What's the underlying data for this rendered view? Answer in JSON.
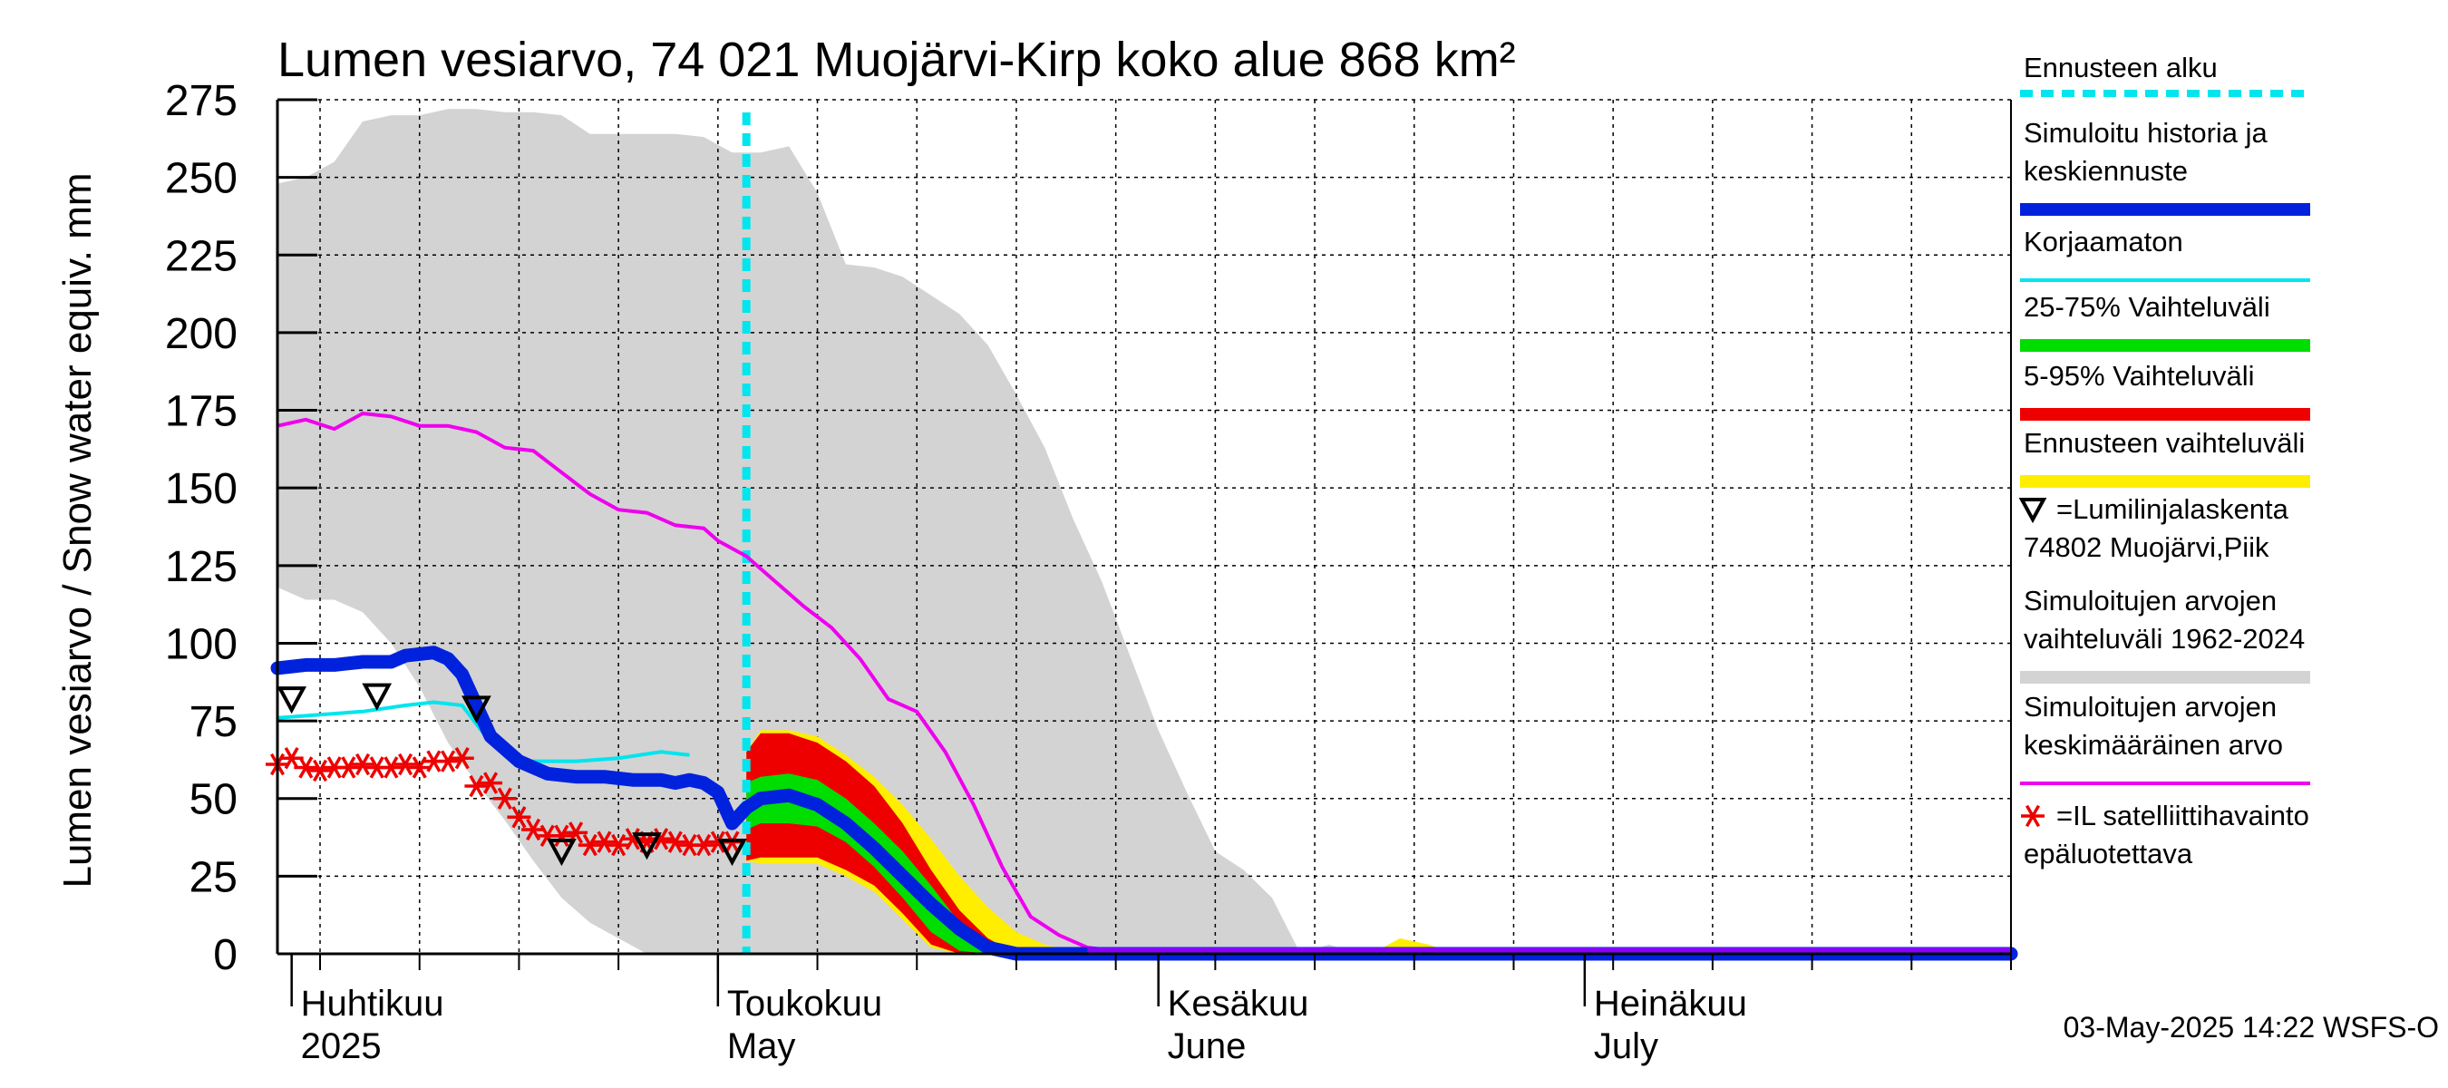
{
  "chart_data": {
    "type": "line",
    "title": "Lumen vesiarvo, 74 021 Muojärvi-Kirp koko alue 868 km²",
    "ylabel": "Lumen vesiarvo / Snow water equiv.    mm",
    "ylim": [
      0,
      275
    ],
    "yticks": [
      0,
      25,
      50,
      75,
      100,
      125,
      150,
      175,
      200,
      225,
      250,
      275
    ],
    "xlim": [
      "2025-03-31",
      "2025-07-31"
    ],
    "month_labels": [
      {
        "date": "2025-04-01",
        "fi": "Huhtikuu",
        "en": "2025"
      },
      {
        "date": "2025-05-01",
        "fi": "Toukokuu",
        "en": "May"
      },
      {
        "date": "2025-06-01",
        "fi": "Kesäkuu",
        "en": "June"
      },
      {
        "date": "2025-07-01",
        "fi": "Heinäkuu",
        "en": "July"
      }
    ],
    "grid": true,
    "footer": "03-May-2025 14:22 WSFS-O",
    "forecast_start": "2025-05-03",
    "colors": {
      "forecast_start": "#00e5ee",
      "simulated": "#0022dd",
      "uncorrected": "#00e5ee",
      "p25_75": "#00dd00",
      "p5_95": "#ee0000",
      "forecast_range": "#ffee00",
      "historical_range": "#d3d3d3",
      "historical_mean": "#ee00ee",
      "snow_course": "#000000",
      "satellite": "#ee0000"
    },
    "historical_range": {
      "dates": [
        "2025-03-31",
        "2025-04-02",
        "2025-04-04",
        "2025-04-06",
        "2025-04-08",
        "2025-04-10",
        "2025-04-12",
        "2025-04-14",
        "2025-04-16",
        "2025-04-18",
        "2025-04-20",
        "2025-04-22",
        "2025-04-24",
        "2025-04-26",
        "2025-04-28",
        "2025-04-30",
        "2025-05-02",
        "2025-05-04",
        "2025-05-06",
        "2025-05-08",
        "2025-05-10",
        "2025-05-12",
        "2025-05-14",
        "2025-05-16",
        "2025-05-18",
        "2025-05-20",
        "2025-05-22",
        "2025-05-24",
        "2025-05-26",
        "2025-05-28",
        "2025-05-30",
        "2025-06-01",
        "2025-06-03",
        "2025-06-05",
        "2025-06-07",
        "2025-06-09",
        "2025-06-11",
        "2025-06-13",
        "2025-06-15",
        "2025-06-18",
        "2025-06-21",
        "2025-06-24",
        "2025-06-27",
        "2025-06-30",
        "2025-07-31"
      ],
      "upper": [
        248,
        250,
        255,
        268,
        270,
        270,
        272,
        272,
        271,
        271,
        270,
        264,
        264,
        264,
        264,
        263,
        258,
        258,
        260,
        245,
        222,
        221,
        218,
        212,
        206,
        196,
        180,
        163,
        140,
        120,
        96,
        72,
        52,
        33,
        27,
        18,
        0,
        3,
        0,
        0,
        0,
        0,
        0,
        0,
        0
      ],
      "lower": [
        118,
        114,
        114,
        110,
        100,
        86,
        68,
        55,
        43,
        30,
        18,
        10,
        5,
        0,
        0,
        0,
        0,
        0,
        0,
        0,
        0,
        0,
        0,
        0,
        0,
        0,
        0,
        0,
        0,
        0,
        0,
        0,
        0,
        0,
        0,
        0,
        0,
        0,
        0,
        0,
        0,
        0,
        0,
        0,
        0
      ]
    },
    "series": [
      {
        "name": "Simuloitujen arvojen keskimääräinen arvo",
        "dates": [
          "2025-03-31",
          "2025-04-02",
          "2025-04-04",
          "2025-04-06",
          "2025-04-08",
          "2025-04-10",
          "2025-04-12",
          "2025-04-14",
          "2025-04-16",
          "2025-04-18",
          "2025-04-20",
          "2025-04-22",
          "2025-04-24",
          "2025-04-26",
          "2025-04-28",
          "2025-04-30",
          "2025-05-01",
          "2025-05-03",
          "2025-05-05",
          "2025-05-07",
          "2025-05-09",
          "2025-05-11",
          "2025-05-13",
          "2025-05-15",
          "2025-05-17",
          "2025-05-19",
          "2025-05-21",
          "2025-05-23",
          "2025-05-25",
          "2025-05-27",
          "2025-05-29",
          "2025-05-31",
          "2025-07-31"
        ],
        "values": [
          170,
          172,
          169,
          174,
          173,
          170,
          170,
          168,
          163,
          162,
          155,
          148,
          143,
          142,
          138,
          137,
          133,
          128,
          120,
          112,
          105,
          95,
          82,
          78,
          65,
          48,
          28,
          12,
          6,
          2,
          1,
          0,
          0
        ]
      },
      {
        "name": "Korjaamaton",
        "dates": [
          "2025-03-31",
          "2025-04-03",
          "2025-04-06",
          "2025-04-09",
          "2025-04-11",
          "2025-04-13",
          "2025-04-15",
          "2025-04-17",
          "2025-04-19",
          "2025-04-21",
          "2025-04-24",
          "2025-04-27",
          "2025-04-29"
        ],
        "values": [
          76,
          77,
          78,
          80,
          81,
          80,
          68,
          62,
          62,
          62,
          63,
          65,
          64
        ]
      },
      {
        "name": "Simuloitu historia ja keskiennuste",
        "dates": [
          "2025-03-31",
          "2025-04-02",
          "2025-04-04",
          "2025-04-06",
          "2025-04-08",
          "2025-04-09",
          "2025-04-11",
          "2025-04-12",
          "2025-04-13",
          "2025-04-14",
          "2025-04-15",
          "2025-04-17",
          "2025-04-19",
          "2025-04-21",
          "2025-04-23",
          "2025-04-25",
          "2025-04-27",
          "2025-04-28",
          "2025-04-29",
          "2025-04-30",
          "2025-05-01",
          "2025-05-02",
          "2025-05-03",
          "2025-05-04",
          "2025-05-06",
          "2025-05-08",
          "2025-05-10",
          "2025-05-12",
          "2025-05-14",
          "2025-05-16",
          "2025-05-18",
          "2025-05-20",
          "2025-05-22",
          "2025-05-24",
          "2025-07-31"
        ],
        "values": [
          92,
          93,
          93,
          94,
          94,
          96,
          97,
          95,
          90,
          80,
          70,
          62,
          58,
          57,
          57,
          56,
          56,
          55,
          56,
          55,
          52,
          42,
          47,
          50,
          51,
          48,
          42,
          34,
          25,
          16,
          8,
          2,
          0,
          0,
          0
        ]
      }
    ],
    "p5_95": {
      "dates": [
        "2025-05-03",
        "2025-05-04",
        "2025-05-06",
        "2025-05-08",
        "2025-05-10",
        "2025-05-12",
        "2025-05-14",
        "2025-05-16",
        "2025-05-18",
        "2025-05-20",
        "2025-05-22"
      ],
      "upper": [
        65,
        71,
        71,
        68,
        62,
        54,
        42,
        27,
        14,
        5,
        0
      ],
      "lower": [
        30,
        31,
        31,
        31,
        27,
        22,
        13,
        3,
        0,
        0,
        0
      ]
    },
    "p25_75": {
      "dates": [
        "2025-05-03",
        "2025-05-04",
        "2025-05-06",
        "2025-05-08",
        "2025-05-10",
        "2025-05-12",
        "2025-05-14",
        "2025-05-16",
        "2025-05-18",
        "2025-05-20"
      ],
      "upper": [
        55,
        57,
        58,
        56,
        50,
        42,
        33,
        22,
        10,
        0
      ],
      "lower": [
        40,
        42,
        42,
        41,
        36,
        28,
        18,
        7,
        1,
        0
      ]
    },
    "forecast_range": {
      "dates": [
        "2025-05-03",
        "2025-05-04",
        "2025-05-06",
        "2025-05-08",
        "2025-05-10",
        "2025-05-12",
        "2025-05-14",
        "2025-05-16",
        "2025-05-18",
        "2025-05-20",
        "2025-05-22",
        "2025-05-24",
        "2025-05-26",
        "2025-05-31",
        "2025-06-16",
        "2025-06-18",
        "2025-06-20",
        "2025-06-22"
      ],
      "upper": [
        65,
        72,
        72,
        70,
        64,
        57,
        48,
        37,
        25,
        15,
        7,
        3,
        1,
        0,
        0,
        5,
        3,
        0
      ],
      "lower": [
        30,
        29,
        29,
        29,
        25,
        20,
        11,
        2,
        0,
        0,
        0,
        0,
        0,
        0,
        0,
        0,
        0,
        0
      ]
    },
    "snow_course": {
      "name": "=Lumilinjalaskenta 74802 Muojärvi,Piik",
      "dates": [
        "2025-04-01",
        "2025-04-07",
        "2025-04-14",
        "2025-04-20",
        "2025-04-26",
        "2025-05-02"
      ],
      "values": [
        82,
        83,
        79,
        33,
        35,
        33
      ]
    },
    "satellite": {
      "name": "=IL satelliittihavainto epäluotettava",
      "dates": [
        "2025-03-31",
        "2025-04-01",
        "2025-04-02",
        "2025-04-03",
        "2025-04-04",
        "2025-04-05",
        "2025-04-06",
        "2025-04-07",
        "2025-04-08",
        "2025-04-09",
        "2025-04-10",
        "2025-04-11",
        "2025-04-12",
        "2025-04-13",
        "2025-04-14",
        "2025-04-15",
        "2025-04-16",
        "2025-04-17",
        "2025-04-18",
        "2025-04-19",
        "2025-04-20",
        "2025-04-21",
        "2025-04-22",
        "2025-04-23",
        "2025-04-24",
        "2025-04-25",
        "2025-04-26",
        "2025-04-27",
        "2025-04-28",
        "2025-04-29",
        "2025-04-30",
        "2025-05-01",
        "2025-05-02"
      ],
      "values": [
        61,
        63,
        60,
        59,
        60,
        60,
        61,
        60,
        60,
        61,
        60,
        62,
        62,
        63,
        54,
        55,
        50,
        44,
        40,
        38,
        38,
        39,
        35,
        36,
        35,
        37,
        36,
        37,
        36,
        35,
        35,
        36,
        36
      ]
    },
    "legend": [
      {
        "key": "forecast_start",
        "label": "Ennusteen alku",
        "style": "dashed"
      },
      {
        "key": "simulated",
        "label": "Simuloitu historia ja keskiennuste",
        "style": "thick"
      },
      {
        "key": "uncorrected",
        "label": "Korjaamaton",
        "style": "line"
      },
      {
        "key": "p25_75",
        "label": "25-75% Vaihteluväli",
        "style": "band"
      },
      {
        "key": "p5_95",
        "label": "5-95% Vaihteluväli",
        "style": "band"
      },
      {
        "key": "forecast_range",
        "label": "Ennusteen vaihteluväli",
        "style": "band"
      },
      {
        "key": "snow_course",
        "label": "=Lumilinjalaskenta 74802 Muojärvi,Piik",
        "style": "triangle"
      },
      {
        "key": "historical_range",
        "label": "Simuloitujen arvojen vaihteluväli 1962-2024",
        "style": "band"
      },
      {
        "key": "historical_mean",
        "label": "Simuloitujen arvojen keskimääräinen arvo",
        "style": "line"
      },
      {
        "key": "satellite",
        "label": "=IL satelliittihavainto epäluotettava",
        "style": "asterisk"
      }
    ]
  }
}
